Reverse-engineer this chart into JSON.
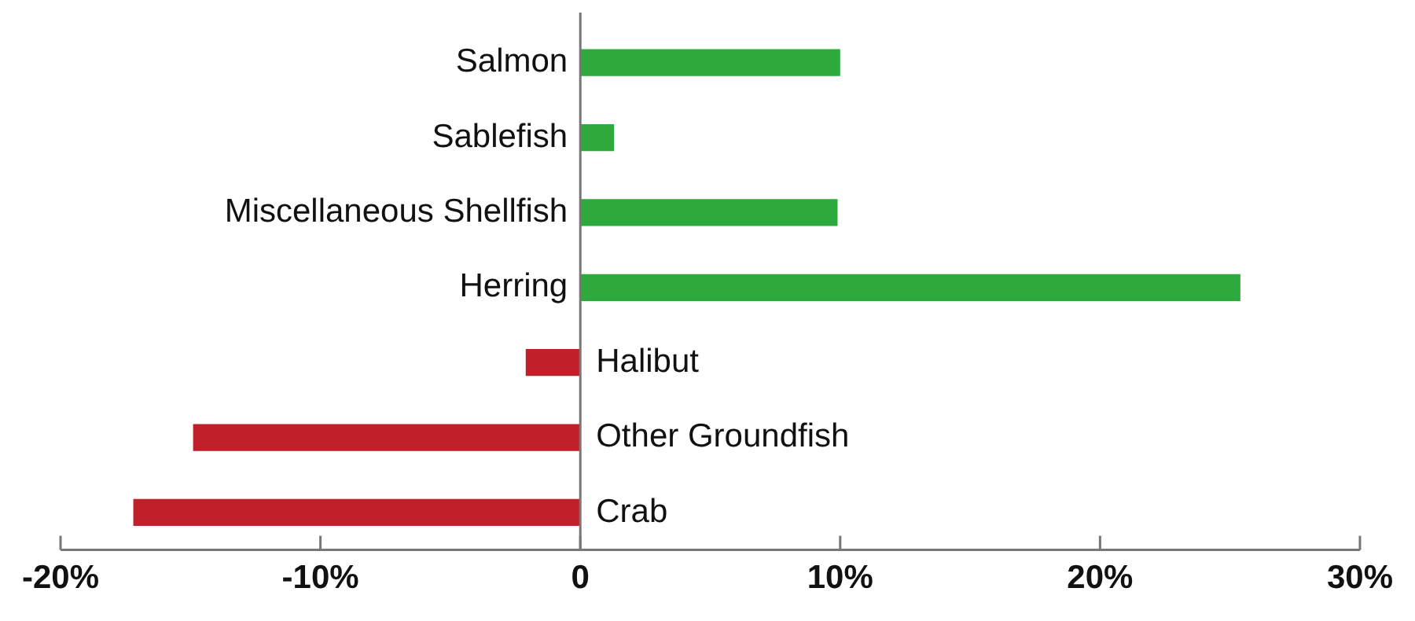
{
  "chart_data": {
    "type": "bar",
    "orientation": "horizontal",
    "categories": [
      "Salmon",
      "Sablefish",
      "Miscellaneous Shellfish",
      "Herring",
      "Halibut",
      "Other Groundfish",
      "Crab"
    ],
    "values": [
      10.0,
      1.3,
      9.9,
      25.4,
      -2.1,
      -14.9,
      -17.2
    ],
    "colors": [
      "#2eaa3c",
      "#2eaa3c",
      "#2eaa3c",
      "#2eaa3c",
      "#c0202a",
      "#c0202a",
      "#c0202a"
    ],
    "xlim": [
      -20,
      30
    ],
    "xticks": [
      {
        "value": -20,
        "label": "-20%"
      },
      {
        "value": -10,
        "label": "-10%"
      },
      0,
      {
        "value": 10,
        "label": "10%"
      },
      {
        "value": 20,
        "label": "20%"
      },
      {
        "value": 30,
        "label": "30%"
      }
    ],
    "grid": false,
    "legend": false
  }
}
